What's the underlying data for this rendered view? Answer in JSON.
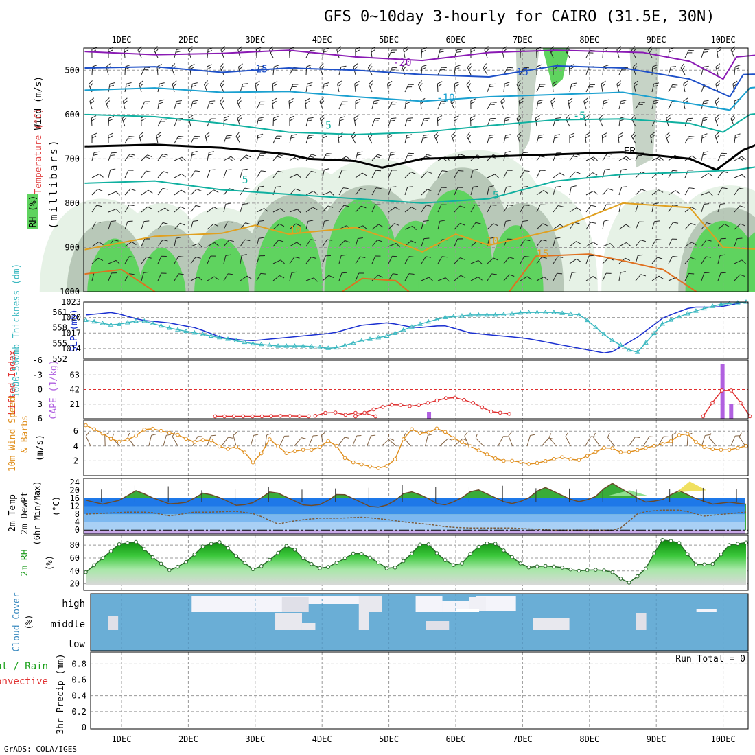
{
  "header": {
    "title": "GFS 0~10day 3-hourly for CAIRO (31.5E, 30N)",
    "credit": "GrADS: COLA/IGES"
  },
  "days": [
    "1DEC",
    "2DEC",
    "3DEC",
    "4DEC",
    "5DEC",
    "6DEC",
    "7DEC",
    "8DEC",
    "9DEC",
    "10DEC"
  ],
  "colors": {
    "rh_green": "#5fd35f",
    "rh_grey": "#b8c8b8",
    "rh_light": "#e6f2e6",
    "slp": "#1a2fd0",
    "thickness": "#3ab8c0",
    "lifted": "#e03030",
    "cape": "#b060e0",
    "wind_speed": "#e09020",
    "barbs": "#806040",
    "cloud": "#6aaed6",
    "temp_purple": "#8a1ab4",
    "temp_blue": "#1e50c8",
    "temp_cyan": "#1aa0d0",
    "temp_teal": "#10b0a0",
    "temp_orange": "#e0a020"
  },
  "panels": {
    "upper": {
      "ylabel": "(millibars)",
      "labels": [
        "Wind (m/s)",
        "Temperature (°C)",
        "RH (%)"
      ],
      "yticks": [
        "500",
        "600",
        "700",
        "800",
        "900",
        "1000"
      ],
      "contour_labels": [
        {
          "text": "-20",
          "x": 4.2,
          "p": 490,
          "color": "#8a1ab4"
        },
        {
          "text": "-15",
          "x": 2.05,
          "p": 505,
          "color": "#1e50c8"
        },
        {
          "text": "-15",
          "x": 5.95,
          "p": 512,
          "color": "#1e50c8"
        },
        {
          "text": "-10",
          "x": 4.85,
          "p": 570,
          "color": "#1aa0d0"
        },
        {
          "text": "-5",
          "x": 3.05,
          "p": 632,
          "color": "#10b0a0"
        },
        {
          "text": "-5",
          "x": 6.85,
          "p": 610,
          "color": "#10b0a0"
        },
        {
          "text": "5",
          "x": 1.85,
          "p": 755,
          "color": "#10b0a0"
        },
        {
          "text": "5",
          "x": 5.6,
          "p": 790,
          "color": "#10b0a0"
        },
        {
          "text": "10",
          "x": 2.6,
          "p": 868,
          "color": "#e0a020"
        },
        {
          "text": "10",
          "x": 5.55,
          "p": 893,
          "color": "#e0a020"
        },
        {
          "text": "15",
          "x": 6.3,
          "p": 922,
          "color": "#e0a020"
        },
        {
          "text": "FR",
          "x": 7.6,
          "p": 690,
          "color": "#000000"
        }
      ]
    },
    "slp": {
      "labels": [
        "1000-500mb Thickness (dm)",
        "SLP (mb)"
      ],
      "left_ticks": [
        "561",
        "558",
        "555",
        "552"
      ],
      "right_ticks": [
        "1023",
        "1020",
        "1017",
        "1014"
      ]
    },
    "cape": {
      "labels": [
        "Lifted Index",
        "CAPE (J/kg)"
      ],
      "left_ticks": [
        "-6",
        "-3",
        "0",
        "3",
        "6"
      ],
      "right_ticks": [
        "63",
        "42",
        "21"
      ]
    },
    "wind10": {
      "labels": [
        "10m Wind Speed",
        "& Barbs",
        "(m/s)"
      ],
      "ticks": [
        "6",
        "4",
        "2"
      ]
    },
    "temp2m": {
      "labels": [
        "2m Temp",
        "2m DewPt",
        "(6hr Min/Max)",
        "(°C)"
      ],
      "ticks": [
        "24",
        "20",
        "16",
        "12",
        "8",
        "4",
        "0"
      ]
    },
    "rh2m": {
      "labels": [
        "2m RH",
        "(%)"
      ],
      "ticks": [
        "80",
        "60",
        "40",
        "20"
      ]
    },
    "cloud": {
      "labels": [
        "Cloud Cover",
        "(%)"
      ],
      "levels": [
        "high",
        "middle",
        "low"
      ]
    },
    "precip": {
      "labels": [
        "Total / Rain",
        "Convective",
        "3hr Precip (mm)"
      ],
      "ticks": [
        "0.8",
        "0.6",
        "0.4",
        "0.2",
        "0"
      ],
      "run_total": "Run Total = 0"
    }
  },
  "chart_data": {
    "type": "line",
    "title": "GFS 0~10day 3-hourly for CAIRO (31.5E, 30N)",
    "x": [
      "1DEC",
      "2DEC",
      "3DEC",
      "4DEC",
      "5DEC",
      "6DEC",
      "7DEC",
      "8DEC",
      "9DEC",
      "10DEC"
    ],
    "series": [
      {
        "name": "SLP (mb)",
        "values": [
          1020.5,
          1019,
          1016.5,
          1016,
          1018.5,
          1018,
          1016,
          1014.5,
          1015.5,
          1022
        ]
      },
      {
        "name": "1000-500mb Thickness (dm)",
        "values": [
          558.5,
          556.5,
          553,
          551.5,
          553,
          558,
          560.5,
          561,
          554,
          561.5
        ]
      },
      {
        "name": "10m Wind Speed (m/s)",
        "values": [
          6,
          4.5,
          4,
          3.5,
          1.5,
          6,
          2.5,
          2.5,
          3.5,
          3.5
        ]
      },
      {
        "name": "2m Temp max (°C)",
        "values": [
          20,
          20,
          19,
          20,
          19,
          20,
          21,
          21,
          24,
          17
        ]
      },
      {
        "name": "2m Temp min (°C)",
        "values": [
          13,
          12,
          11,
          11,
          10,
          11,
          12,
          12,
          12,
          12
        ]
      },
      {
        "name": "2m RH (%)",
        "values": [
          85,
          85,
          82,
          70,
          88,
          86,
          48,
          42,
          86,
          84
        ]
      }
    ]
  }
}
